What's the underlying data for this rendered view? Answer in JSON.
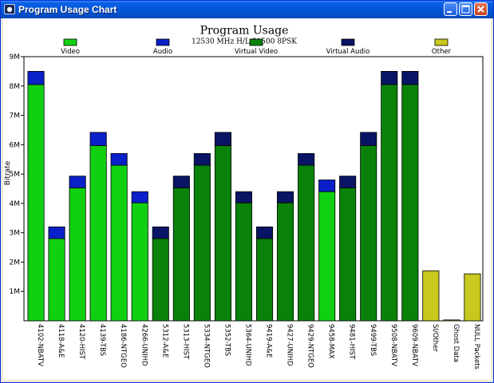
{
  "window": {
    "title": "Program Usage Chart"
  },
  "chart_data": {
    "type": "bar",
    "stacked": true,
    "title": "Program Usage",
    "subtitle": "12530 MHz H/L 21500 8PSK",
    "ylabel": "Bitrate",
    "xlabel": "",
    "ylim": [
      0,
      9000000
    ],
    "y_ticks": [
      "1M",
      "2M",
      "3M",
      "4M",
      "5M",
      "6M",
      "7M",
      "8M",
      "9M"
    ],
    "legend_position": "top",
    "grid": false,
    "categories": [
      "4102-NBATV",
      "4118-A&E",
      "4120-HIST",
      "4139-TBS",
      "4186-NTGEO",
      "4266-UNIHD",
      "5312-A&E",
      "5313-HIST",
      "5334-NTGEO",
      "5352-TBS",
      "5364-UNIHD",
      "9419-A&E",
      "9427-UNIHD",
      "9429-NTGEO",
      "9458-MAX",
      "9481-HIST",
      "9499-TBS",
      "9508-NBATV",
      "9609-NBATV",
      "SI/Other",
      "Ghost Data",
      "NULL Packets"
    ],
    "series": [
      {
        "name": "Video",
        "color": "#11D011",
        "values": [
          8050000,
          2800000,
          4530000,
          5970000,
          5300000,
          4020000,
          0,
          0,
          0,
          0,
          0,
          0,
          0,
          0,
          4400000,
          0,
          0,
          0,
          0,
          0,
          0,
          0
        ]
      },
      {
        "name": "Audio",
        "color": "#0A20C8",
        "values": [
          450000,
          400000,
          400000,
          450000,
          400000,
          380000,
          0,
          0,
          0,
          0,
          0,
          0,
          0,
          0,
          400000,
          0,
          0,
          0,
          0,
          0,
          0,
          0
        ]
      },
      {
        "name": "Virtual Video",
        "color": "#0A820A",
        "values": [
          0,
          0,
          0,
          0,
          0,
          0,
          2800000,
          4530000,
          5300000,
          5970000,
          4020000,
          2800000,
          4020000,
          5300000,
          0,
          4530000,
          5970000,
          8050000,
          8050000,
          0,
          0,
          0
        ]
      },
      {
        "name": "Virtual Audio",
        "color": "#0A1464",
        "values": [
          0,
          0,
          0,
          0,
          0,
          0,
          400000,
          400000,
          400000,
          450000,
          380000,
          400000,
          380000,
          400000,
          0,
          400000,
          450000,
          450000,
          450000,
          0,
          0,
          0
        ]
      },
      {
        "name": "Other",
        "color": "#C8C81E",
        "values": [
          0,
          0,
          0,
          0,
          0,
          0,
          0,
          0,
          0,
          0,
          0,
          0,
          0,
          0,
          0,
          0,
          0,
          0,
          0,
          1700000,
          30000,
          1600000
        ]
      }
    ]
  }
}
